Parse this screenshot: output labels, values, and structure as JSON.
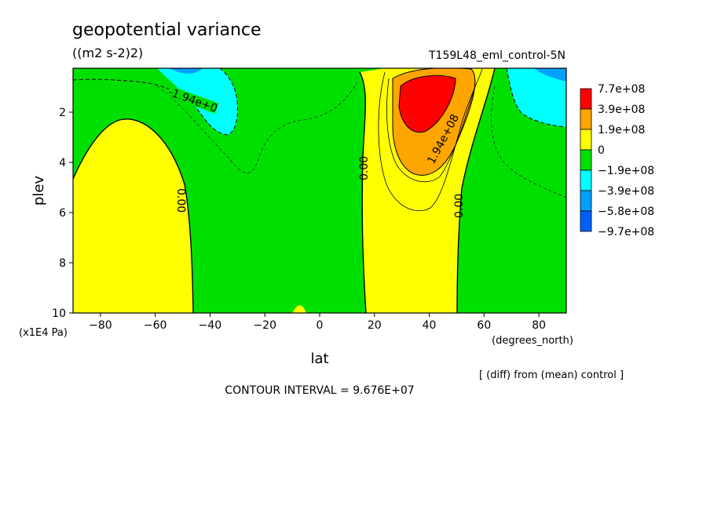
{
  "chart_data": {
    "type": "heatmap",
    "title": "geopotential variance",
    "units": "((m2 s-2)2)",
    "run_label": "T159L48_eml_control-5N",
    "xlabel": "lat",
    "x_units": "(degrees_north)",
    "ylabel": "plev",
    "y_units": "(x1E4 Pa)",
    "xlim": [
      -90,
      90
    ],
    "ylim": [
      10,
      0.25
    ],
    "x_ticks": [
      -80,
      -60,
      -40,
      -20,
      0,
      20,
      40,
      60,
      80
    ],
    "y_ticks": [
      2,
      4,
      6,
      8,
      10
    ],
    "contour_labels": [
      {
        "text": "-1.94e+0",
        "lat": -51,
        "plev": 1.5
      },
      {
        "text": "0.00",
        "lat": -50,
        "plev": 5.4
      },
      {
        "text": "0.00",
        "lat": 17,
        "plev": 4.3
      },
      {
        "text": "1.94e+08",
        "lat": 43,
        "plev": 3.0
      },
      {
        "text": "0.00",
        "lat": 51,
        "plev": 6.0
      }
    ],
    "legend": {
      "labels": [
        "7.7e+08",
        "3.9e+08",
        "1.9e+08",
        "0",
        "−1.9e+08",
        "−3.9e+08",
        "−5.8e+08",
        "−9.7e+08"
      ],
      "colors": [
        "#ff0000",
        "#ffa500",
        "#ffff00",
        "#00e000",
        "#00ffff",
        "#00a0ff",
        "#0060ff"
      ]
    },
    "note": "[ (diff) from (mean) control ]",
    "contour_interval": "CONTOUR INTERVAL = 9.676E+07",
    "colors": {
      "max": "#ff0000",
      "high": "#ffa500",
      "pos": "#ffff00",
      "neg": "#00e000",
      "neg2": "#00ffff",
      "neg3": "#00a0ff"
    }
  }
}
